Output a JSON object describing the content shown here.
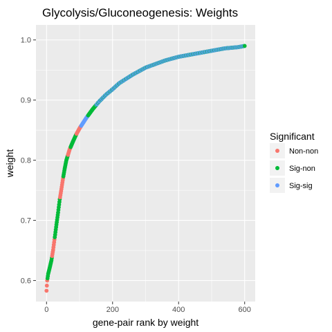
{
  "chart_data": {
    "type": "scatter",
    "title": "Glycolysis/Gluconeogenesis: Weights",
    "xlabel": "gene-pair rank by weight",
    "ylabel": "weight",
    "xlim": [
      -32,
      632
    ],
    "ylim": [
      0.565,
      1.025
    ],
    "x_ticks": [
      0,
      200,
      400,
      600
    ],
    "y_ticks": [
      0.6,
      0.7,
      0.8,
      0.9,
      1.0
    ],
    "x_tick_labels": [
      "0",
      "200",
      "400",
      "600"
    ],
    "y_tick_labels": [
      "0.6",
      "0.7",
      "0.8",
      "0.9",
      "1.0"
    ],
    "grid": true,
    "background": "#ebebeb",
    "gridline_color": "#ffffff",
    "legend": {
      "title": "Significant",
      "position": "right",
      "entries": [
        {
          "label": "Non-non",
          "color": "#F8766D"
        },
        {
          "label": "Sig-non",
          "color": "#00BA38"
        },
        {
          "label": "Sig-sig",
          "color": "#619CFF"
        }
      ]
    },
    "curve_knots": [
      [
        0,
        0.583
      ],
      [
        2,
        0.6
      ],
      [
        5,
        0.611
      ],
      [
        10,
        0.622
      ],
      [
        15,
        0.634
      ],
      [
        20,
        0.651
      ],
      [
        25,
        0.672
      ],
      [
        30,
        0.693
      ],
      [
        35,
        0.713
      ],
      [
        40,
        0.735
      ],
      [
        45,
        0.752
      ],
      [
        50,
        0.77
      ],
      [
        55,
        0.786
      ],
      [
        60,
        0.8
      ],
      [
        70,
        0.818
      ],
      [
        80,
        0.831
      ],
      [
        90,
        0.843
      ],
      [
        100,
        0.853
      ],
      [
        120,
        0.87
      ],
      [
        140,
        0.885
      ],
      [
        160,
        0.898
      ],
      [
        180,
        0.909
      ],
      [
        200,
        0.918
      ],
      [
        220,
        0.928
      ],
      [
        240,
        0.935
      ],
      [
        260,
        0.942
      ],
      [
        280,
        0.948
      ],
      [
        300,
        0.954
      ],
      [
        320,
        0.958
      ],
      [
        340,
        0.962
      ],
      [
        360,
        0.966
      ],
      [
        380,
        0.969
      ],
      [
        400,
        0.972
      ],
      [
        420,
        0.974
      ],
      [
        440,
        0.976
      ],
      [
        460,
        0.978
      ],
      [
        480,
        0.98
      ],
      [
        500,
        0.982
      ],
      [
        520,
        0.984
      ],
      [
        540,
        0.986
      ],
      [
        560,
        0.987
      ],
      [
        580,
        0.988
      ],
      [
        600,
        0.99
      ]
    ],
    "color_segments": [
      {
        "from": 0,
        "to": 2,
        "group": "Non-non"
      },
      {
        "from": 3,
        "to": 16,
        "group": "Sig-non"
      },
      {
        "from": 17,
        "to": 24,
        "group": "Non-non"
      },
      {
        "from": 25,
        "to": 40,
        "group": "Sig-non"
      },
      {
        "from": 41,
        "to": 50,
        "group": "Non-non"
      },
      {
        "from": 51,
        "to": 64,
        "group": "Sig-non"
      },
      {
        "from": 65,
        "to": 72,
        "group": "Non-non"
      },
      {
        "from": 73,
        "to": 90,
        "group": "Sig-non"
      },
      {
        "from": 91,
        "to": 104,
        "group": "Non-non"
      },
      {
        "from": 105,
        "to": 125,
        "group": "Sig-sig"
      },
      {
        "from": 126,
        "to": 150,
        "group": "Sig-non"
      },
      {
        "from": 151,
        "to": 600,
        "group": "mixed"
      }
    ],
    "mixed_pattern": [
      "Sig-sig",
      "Sig-sig",
      "Sig-non",
      "Sig-sig",
      "Sig-sig",
      "Sig-non",
      "Sig-sig"
    ]
  }
}
